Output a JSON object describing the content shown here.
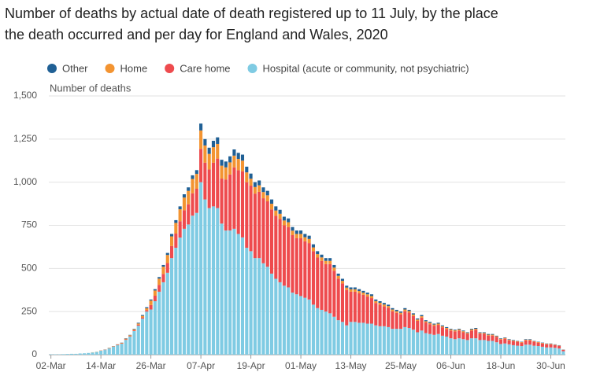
{
  "chart_data": {
    "type": "stacked-bar",
    "title": "Number of deaths by actual date of death registered up to 11 July, by the place the death occurred and per day for England and Wales, 2020",
    "y_label": "Number of deaths",
    "categories": [
      "02-Mar",
      null,
      null,
      null,
      null,
      null,
      null,
      null,
      null,
      null,
      null,
      null,
      "14-Mar",
      null,
      null,
      null,
      null,
      null,
      null,
      null,
      null,
      null,
      null,
      null,
      "26-Mar",
      null,
      null,
      null,
      null,
      null,
      null,
      null,
      null,
      null,
      null,
      null,
      "07-Apr",
      null,
      null,
      null,
      null,
      null,
      null,
      null,
      null,
      null,
      null,
      null,
      "19-Apr",
      null,
      null,
      null,
      null,
      null,
      null,
      null,
      null,
      null,
      null,
      null,
      "01-May",
      null,
      null,
      null,
      null,
      null,
      null,
      null,
      null,
      null,
      null,
      null,
      "13-May",
      null,
      null,
      null,
      null,
      null,
      null,
      null,
      null,
      null,
      null,
      null,
      "25-May",
      null,
      null,
      null,
      null,
      null,
      null,
      null,
      null,
      null,
      null,
      null,
      "06-Jun",
      null,
      null,
      null,
      null,
      null,
      null,
      null,
      null,
      null,
      null,
      null,
      "18-Jun",
      null,
      null,
      null,
      null,
      null,
      null,
      null,
      null,
      null,
      null,
      null,
      "30-Jun",
      null,
      null,
      null
    ],
    "series": [
      {
        "name": "Other",
        "color": "#206095",
        "values": [
          0,
          0,
          0,
          0,
          0,
          0,
          0,
          0,
          0,
          0,
          0,
          0,
          0,
          1,
          1,
          1,
          1,
          1,
          2,
          2,
          3,
          4,
          5,
          6,
          6,
          8,
          9,
          10,
          12,
          14,
          16,
          17,
          19,
          20,
          21,
          22,
          40,
          37,
          36,
          37,
          38,
          34,
          34,
          35,
          36,
          35,
          35,
          33,
          30,
          28,
          28,
          27,
          26,
          25,
          24,
          23,
          22,
          22,
          21,
          20,
          20,
          19,
          19,
          18,
          17,
          16,
          16,
          16,
          15,
          13,
          12,
          11,
          11,
          11,
          11,
          10,
          10,
          10,
          9,
          9,
          9,
          8,
          8,
          8,
          7,
          8,
          7,
          7,
          6,
          7,
          6,
          6,
          5,
          5,
          5,
          5,
          4,
          4,
          4,
          4,
          4,
          4,
          5,
          4,
          4,
          4,
          4,
          3,
          3,
          3,
          3,
          3,
          2,
          2,
          3,
          3,
          2,
          2,
          2,
          2,
          2,
          2,
          2,
          1
        ]
      },
      {
        "name": "Home",
        "color": "#f39431",
        "values": [
          0,
          0,
          0,
          0,
          0,
          0,
          0,
          0,
          0,
          0,
          1,
          1,
          1,
          1,
          2,
          2,
          2,
          3,
          4,
          5,
          6,
          7,
          9,
          11,
          26,
          30,
          36,
          42,
          47,
          56,
          62,
          69,
          74,
          78,
          83,
          86,
          107,
          100,
          90,
          90,
          85,
          75,
          70,
          70,
          68,
          65,
          62,
          57,
          40,
          38,
          38,
          36,
          35,
          33,
          31,
          30,
          28,
          28,
          26,
          25,
          25,
          24,
          24,
          22,
          20,
          20,
          19,
          19,
          18,
          16,
          15,
          14,
          14,
          14,
          13,
          13,
          13,
          12,
          11,
          11,
          11,
          10,
          10,
          9,
          9,
          10,
          9,
          9,
          8,
          8,
          7,
          7,
          7,
          7,
          6,
          6,
          6,
          6,
          6,
          6,
          5,
          6,
          6,
          5,
          5,
          5,
          5,
          4,
          4,
          4,
          4,
          3,
          3,
          3,
          4,
          4,
          3,
          3,
          3,
          3,
          3,
          2,
          2,
          1
        ]
      },
      {
        "name": "Care home",
        "color": "#ee4b4e",
        "values": [
          0,
          0,
          0,
          0,
          0,
          0,
          0,
          0,
          0,
          0,
          0,
          0,
          1,
          1,
          1,
          1,
          2,
          2,
          3,
          3,
          4,
          6,
          7,
          8,
          26,
          32,
          40,
          48,
          56,
          70,
          82,
          95,
          107,
          117,
          130,
          140,
          193,
          213,
          224,
          253,
          287,
          261,
          296,
          325,
          356,
          370,
          383,
          380,
          380,
          374,
          384,
          377,
          379,
          372,
          365,
          367,
          350,
          350,
          333,
          325,
          335,
          327,
          327,
          310,
          293,
          284,
          275,
          285,
          267,
          241,
          223,
          205,
          175,
          175,
          171,
          162,
          157,
          148,
          130,
          125,
          115,
          112,
          102,
          93,
          84,
          92,
          89,
          79,
          66,
          75,
          62,
          57,
          53,
          53,
          49,
          44,
          45,
          45,
          45,
          40,
          36,
          45,
          49,
          36,
          36,
          31,
          31,
          31,
          26,
          28,
          23,
          24,
          23,
          20,
          25,
          25,
          23,
          20,
          19,
          18,
          18,
          16,
          15,
          8
        ]
      },
      {
        "name": "Hospital (acute or community, not psychiatric)",
        "color": "#7fcbe3",
        "values": [
          2,
          2,
          2,
          3,
          4,
          5,
          5,
          7,
          8,
          10,
          13,
          16,
          23,
          27,
          36,
          46,
          55,
          64,
          86,
          105,
          137,
          168,
          209,
          250,
          262,
          310,
          365,
          420,
          475,
          560,
          620,
          679,
          730,
          755,
          806,
          822,
          1000,
          900,
          850,
          860,
          850,
          760,
          720,
          720,
          730,
          700,
          680,
          620,
          600,
          560,
          560,
          530,
          510,
          470,
          440,
          420,
          400,
          390,
          360,
          350,
          340,
          330,
          320,
          290,
          270,
          260,
          250,
          240,
          220,
          200,
          190,
          170,
          190,
          190,
          185,
          185,
          180,
          180,
          170,
          165,
          165,
          160,
          150,
          150,
          150,
          160,
          155,
          145,
          130,
          140,
          125,
          120,
          115,
          120,
          110,
          105,
          95,
          90,
          95,
          90,
          85,
          95,
          95,
          85,
          85,
          80,
          80,
          72,
          62,
          65,
          60,
          55,
          52,
          50,
          58,
          58,
          52,
          50,
          46,
          42,
          42,
          40,
          36,
          20
        ]
      }
    ],
    "ylim": [
      0,
      1500
    ],
    "yticks": [
      0,
      250,
      500,
      750,
      {
        "value": 1000,
        "label": "1,000"
      },
      {
        "value": 1250,
        "label": "1,250"
      },
      {
        "value": 1500,
        "label": "1,500"
      }
    ],
    "grid": true
  }
}
